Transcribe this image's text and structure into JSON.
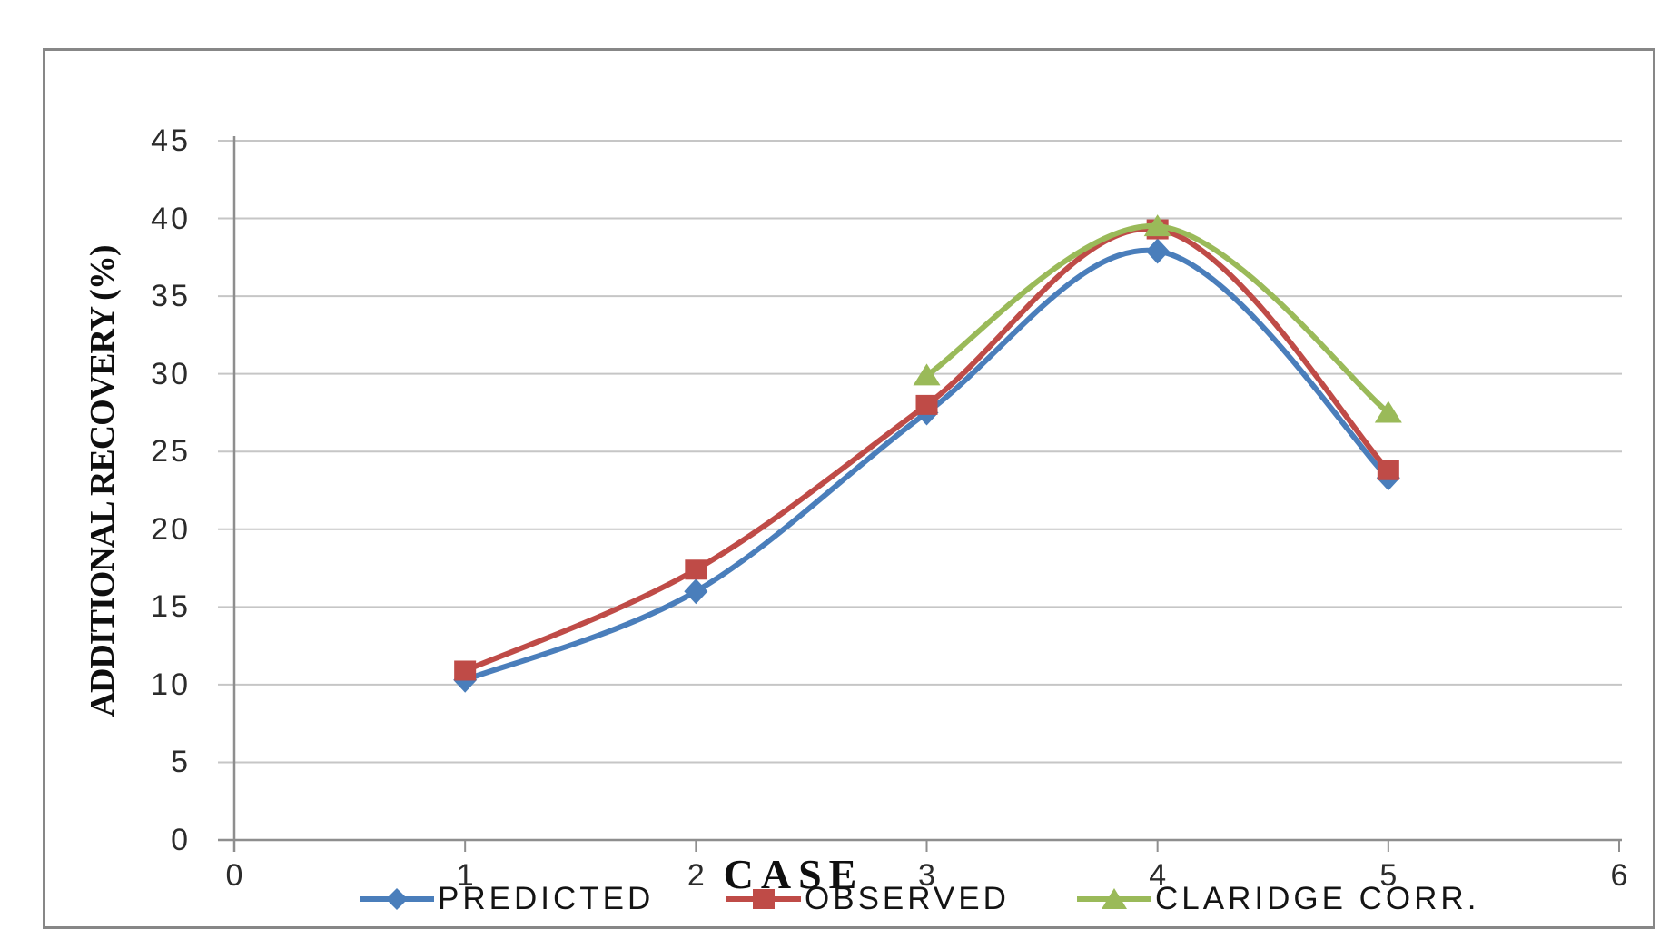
{
  "chart_data": {
    "type": "line",
    "line_style": "smooth",
    "title": "",
    "xlabel": "CASE",
    "ylabel": "ADDITIONAL RECOVERY (%)",
    "xlim": [
      0,
      6
    ],
    "ylim": [
      0,
      45
    ],
    "x_ticks": [
      0,
      1,
      2,
      3,
      4,
      5,
      6
    ],
    "y_ticks": [
      0,
      5,
      10,
      15,
      20,
      25,
      30,
      35,
      40,
      45
    ],
    "grid": "horizontal",
    "legend_position": "bottom",
    "x": [
      1,
      2,
      3,
      4,
      5
    ],
    "series": [
      {
        "name": "PREDICTED",
        "color": "#4a7ebb",
        "marker": "diamond",
        "values": [
          10.3,
          16.0,
          27.5,
          37.9,
          23.3
        ]
      },
      {
        "name": "OBSERVED",
        "color": "#bf4b47",
        "marker": "square",
        "values": [
          10.9,
          17.4,
          28.0,
          39.3,
          23.8
        ]
      },
      {
        "name": "CLARIDGE CORR.",
        "color": "#9aba59",
        "marker": "triangle",
        "values": [
          null,
          null,
          29.9,
          39.5,
          27.5
        ]
      }
    ]
  },
  "colors": {
    "frame_border": "#878787",
    "axis_line": "#8e8e8e",
    "gridline": "#c6c6c6",
    "tick_text": "#2b2b2b",
    "title_text": "#0f0f0f",
    "background": "#ffffff"
  }
}
